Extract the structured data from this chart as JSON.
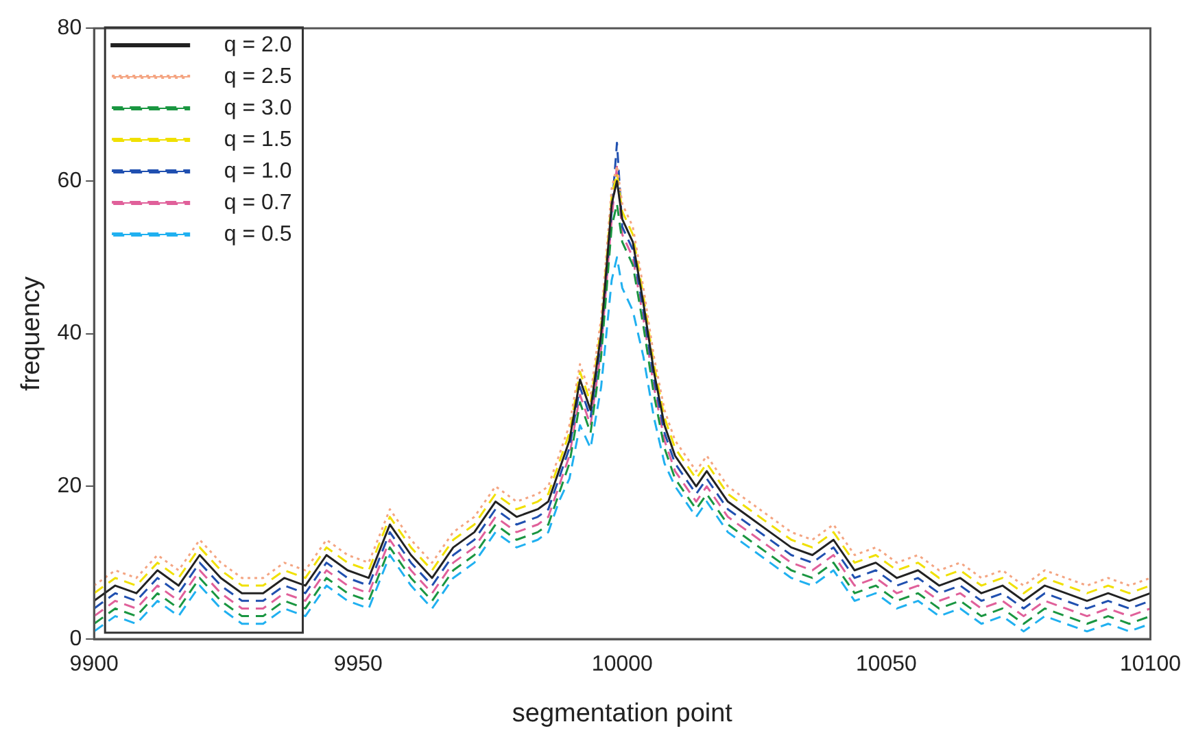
{
  "chart_data": {
    "type": "line",
    "xlabel": "segmentation point",
    "ylabel": "frequency",
    "x": [
      9900,
      9904,
      9908,
      9912,
      9916,
      9920,
      9924,
      9928,
      9932,
      9936,
      9940,
      9944,
      9948,
      9952,
      9956,
      9960,
      9964,
      9968,
      9972,
      9976,
      9980,
      9984,
      9986,
      9988,
      9990,
      9992,
      9994,
      9996,
      9998,
      9999,
      10000,
      10002,
      10004,
      10006,
      10008,
      10010,
      10012,
      10014,
      10016,
      10020,
      10024,
      10028,
      10032,
      10036,
      10040,
      10044,
      10048,
      10052,
      10056,
      10060,
      10064,
      10068,
      10072,
      10076,
      10080,
      10084,
      10088,
      10092,
      10096,
      10100
    ],
    "series": [
      {
        "name": "q = 2.0",
        "color": "#222222",
        "line_style": "solid",
        "values": [
          5,
          7,
          6,
          9,
          7,
          11,
          8,
          6,
          6,
          8,
          7,
          11,
          9,
          8,
          15,
          11,
          8,
          12,
          14,
          18,
          16,
          17,
          18,
          22,
          26,
          34,
          30,
          40,
          57,
          60,
          55,
          52,
          44,
          35,
          28,
          24,
          22,
          20,
          22,
          18,
          16,
          14,
          12,
          11,
          13,
          9,
          10,
          8,
          9,
          7,
          8,
          6,
          7,
          5,
          7,
          6,
          5,
          6,
          5,
          6
        ]
      },
      {
        "name": "q = 2.5",
        "color": "#f4a582",
        "line_style": "dotted",
        "values": [
          7,
          9,
          8,
          11,
          9,
          13,
          10,
          8,
          8,
          10,
          9,
          13,
          11,
          10,
          17,
          13,
          10,
          14,
          16,
          20,
          18,
          19,
          20,
          24,
          28,
          36,
          32,
          42,
          59,
          62,
          57,
          54,
          46,
          37,
          30,
          26,
          24,
          22,
          24,
          20,
          18,
          16,
          14,
          13,
          15,
          11,
          12,
          10,
          11,
          9,
          10,
          8,
          9,
          7,
          9,
          8,
          7,
          8,
          7,
          8
        ]
      },
      {
        "name": "q = 3.0",
        "color": "#1a9641",
        "line_style": "dashed",
        "values": [
          2,
          4,
          3,
          6,
          4,
          8,
          5,
          3,
          3,
          5,
          4,
          8,
          6,
          5,
          12,
          8,
          5,
          9,
          11,
          15,
          13,
          14,
          15,
          19,
          23,
          31,
          27,
          37,
          54,
          57,
          52,
          49,
          41,
          32,
          25,
          21,
          19,
          17,
          19,
          15,
          13,
          11,
          9,
          8,
          10,
          6,
          7,
          5,
          6,
          4,
          5,
          3,
          4,
          2,
          4,
          3,
          2,
          3,
          2,
          3
        ]
      },
      {
        "name": "q = 1.5",
        "color": "#f0e000",
        "line_style": "dashed",
        "values": [
          6,
          8,
          7,
          10,
          8,
          12,
          9,
          7,
          7,
          9,
          8,
          12,
          10,
          9,
          16,
          12,
          9,
          13,
          15,
          19,
          17,
          18,
          19,
          23,
          27,
          35,
          31,
          41,
          58,
          61,
          56,
          53,
          45,
          36,
          29,
          25,
          23,
          21,
          23,
          19,
          17,
          15,
          13,
          12,
          14,
          10,
          11,
          9,
          10,
          8,
          9,
          7,
          8,
          6,
          8,
          7,
          6,
          7,
          6,
          7
        ]
      },
      {
        "name": "q = 1.0",
        "color": "#2050b0",
        "line_style": "dashed",
        "values": [
          4,
          6,
          5,
          8,
          6,
          10,
          7,
          5,
          5,
          7,
          6,
          10,
          8,
          7,
          14,
          10,
          7,
          11,
          13,
          17,
          15,
          16,
          17,
          21,
          25,
          33,
          29,
          39,
          56,
          65,
          54,
          51,
          43,
          34,
          27,
          23,
          21,
          19,
          21,
          17,
          15,
          13,
          11,
          10,
          12,
          8,
          9,
          7,
          8,
          6,
          7,
          5,
          6,
          4,
          6,
          5,
          4,
          5,
          4,
          5
        ]
      },
      {
        "name": "q = 0.7",
        "color": "#e0609a",
        "line_style": "dashed",
        "values": [
          3,
          5,
          4,
          7,
          5,
          9,
          6,
          4,
          4,
          6,
          5,
          9,
          7,
          6,
          13,
          9,
          6,
          10,
          12,
          16,
          14,
          15,
          16,
          20,
          24,
          32,
          28,
          38,
          55,
          62,
          53,
          50,
          42,
          33,
          26,
          22,
          20,
          18,
          20,
          16,
          14,
          12,
          10,
          9,
          11,
          7,
          8,
          6,
          7,
          5,
          6,
          4,
          5,
          3,
          5,
          4,
          3,
          4,
          3,
          4
        ]
      },
      {
        "name": "q = 0.5",
        "color": "#20b0f0",
        "line_style": "dashed",
        "values": [
          1,
          3,
          2,
          5,
          3,
          7,
          4,
          2,
          2,
          4,
          3,
          7,
          5,
          4,
          11,
          7,
          4,
          8,
          10,
          14,
          12,
          13,
          14,
          18,
          21,
          28,
          25,
          33,
          47,
          50,
          46,
          43,
          37,
          29,
          23,
          20,
          18,
          16,
          18,
          14,
          12,
          10,
          8,
          7,
          9,
          5,
          6,
          4,
          5,
          3,
          4,
          2,
          3,
          1,
          3,
          2,
          1,
          2,
          1,
          2
        ]
      }
    ],
    "xlim": [
      9900,
      10100
    ],
    "xticks": [
      9900,
      9950,
      10000,
      10050,
      10100
    ],
    "ylim": [
      0,
      80
    ],
    "yticks": [
      0,
      20,
      40,
      60,
      80
    ],
    "grid": false,
    "legend": "top left",
    "marker": "none"
  }
}
